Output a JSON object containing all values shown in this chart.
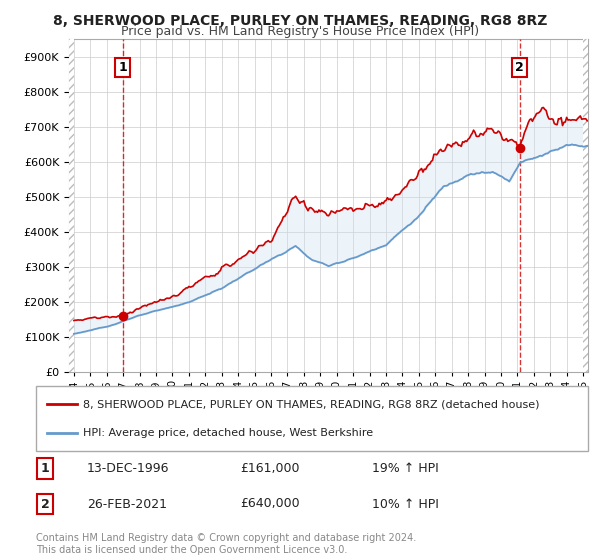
{
  "title_line1": "8, SHERWOOD PLACE, PURLEY ON THAMES, READING, RG8 8RZ",
  "title_line2": "Price paid vs. HM Land Registry's House Price Index (HPI)",
  "ylim": [
    0,
    950000
  ],
  "yticks": [
    0,
    100000,
    200000,
    300000,
    400000,
    500000,
    600000,
    700000,
    800000,
    900000
  ],
  "ytick_labels": [
    "£0",
    "£100K",
    "£200K",
    "£300K",
    "£400K",
    "£500K",
    "£600K",
    "£700K",
    "£800K",
    "£900K"
  ],
  "sale1_x": 1996.96,
  "sale1_y": 161000,
  "sale1_label": "1",
  "sale1_date": "13-DEC-1996",
  "sale1_price": "£161,000",
  "sale1_hpi": "19% ↑ HPI",
  "sale2_x": 2021.15,
  "sale2_y": 640000,
  "sale2_label": "2",
  "sale2_date": "26-FEB-2021",
  "sale2_price": "£640,000",
  "sale2_hpi": "10% ↑ HPI",
  "line_color_red": "#cc0000",
  "line_color_blue": "#6699cc",
  "fill_color_blue": "#cce0f0",
  "grid_color": "#cccccc",
  "legend_line1": "8, SHERWOOD PLACE, PURLEY ON THAMES, READING, RG8 8RZ (detached house)",
  "legend_line2": "HPI: Average price, detached house, West Berkshire",
  "footer": "Contains HM Land Registry data © Crown copyright and database right 2024.\nThis data is licensed under the Open Government Licence v3.0.",
  "background_color": "#ffffff",
  "xlim_left": 1993.7,
  "xlim_right": 2025.3
}
